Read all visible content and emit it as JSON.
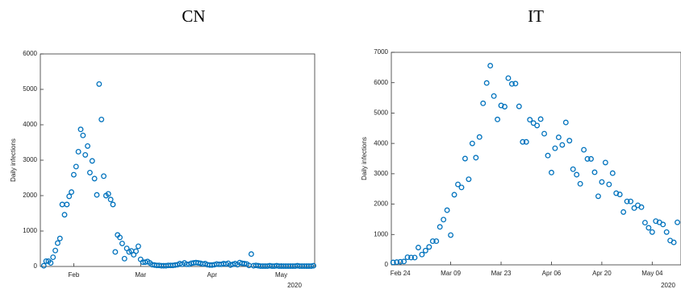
{
  "chart_data": [
    {
      "type": "scatter",
      "title": "CN",
      "y_label": "Daily infections",
      "annotation": "2020",
      "color": "#0072bd",
      "x": [
        19,
        20,
        21,
        22,
        23,
        24,
        25,
        26,
        27,
        28,
        29,
        30,
        31,
        32,
        33,
        34,
        35,
        36,
        37,
        38,
        39,
        40,
        41,
        42,
        43,
        44,
        45,
        46,
        47,
        48,
        49,
        50,
        51,
        52,
        53,
        54,
        55,
        56,
        57,
        58,
        59,
        60,
        61,
        62,
        63,
        64,
        65,
        66,
        67,
        68,
        69,
        70,
        71,
        72,
        73,
        74,
        75,
        76,
        77,
        78,
        79,
        80,
        81,
        82,
        83,
        84,
        85,
        86,
        87,
        88,
        89,
        90,
        91,
        92,
        93,
        94,
        95,
        96,
        97,
        98,
        99,
        100,
        101,
        102,
        103,
        104,
        105,
        106,
        107,
        108,
        109,
        110,
        111,
        112,
        113,
        114,
        115,
        116,
        117,
        118,
        119,
        120,
        121,
        122,
        123,
        124,
        125,
        126,
        127,
        128,
        129,
        130,
        131,
        132,
        133,
        134,
        135,
        136
      ],
      "values": [
        20,
        150,
        150,
        100,
        260,
        450,
        660,
        790,
        1750,
        1460,
        1750,
        1980,
        2100,
        2590,
        2820,
        3240,
        3870,
        3700,
        3150,
        3400,
        2650,
        2980,
        2480,
        2020,
        5150,
        4150,
        2550,
        2000,
        2050,
        1890,
        1750,
        410,
        890,
        820,
        650,
        220,
        510,
        410,
        440,
        330,
        430,
        570,
        200,
        120,
        120,
        140,
        100,
        50,
        40,
        30,
        30,
        20,
        20,
        20,
        30,
        30,
        30,
        40,
        50,
        80,
        60,
        100,
        60,
        60,
        90,
        100,
        110,
        100,
        90,
        70,
        80,
        50,
        40,
        40,
        50,
        70,
        60,
        60,
        80,
        70,
        90,
        40,
        60,
        80,
        50,
        110,
        90,
        80,
        70,
        30,
        350,
        20,
        30,
        20,
        10,
        10,
        10,
        10,
        20,
        10,
        10,
        20,
        10,
        10,
        10,
        10,
        10,
        10,
        10,
        10,
        20,
        10,
        10,
        10,
        10,
        10,
        10,
        20
      ],
      "xlim": [
        17.5,
        136.5
      ],
      "xticks": [
        {
          "value": 32,
          "label": "Feb"
        },
        {
          "value": 61,
          "label": "Mar"
        },
        {
          "value": 92,
          "label": "Apr"
        },
        {
          "value": 122,
          "label": "May"
        }
      ],
      "ylim": [
        0,
        6000
      ],
      "yticks": [
        0,
        1000,
        2000,
        3000,
        4000,
        5000,
        6000
      ]
    },
    {
      "type": "scatter",
      "title": "IT",
      "y_label": "Daily infections",
      "annotation": "2020",
      "color": "#0072bd",
      "x": [
        53,
        54,
        55,
        56,
        57,
        58,
        59,
        60,
        61,
        62,
        63,
        64,
        65,
        66,
        67,
        68,
        69,
        70,
        71,
        72,
        73,
        74,
        75,
        76,
        77,
        78,
        79,
        80,
        81,
        82,
        83,
        84,
        85,
        86,
        87,
        88,
        89,
        90,
        91,
        92,
        93,
        94,
        95,
        96,
        97,
        98,
        99,
        100,
        101,
        102,
        103,
        104,
        105,
        106,
        107,
        108,
        109,
        110,
        111,
        112,
        113,
        114,
        115,
        116,
        117,
        118,
        119,
        120,
        121,
        122,
        123,
        124,
        125,
        126,
        127,
        128,
        129,
        130,
        131,
        132
      ],
      "values": [
        80,
        90,
        100,
        110,
        250,
        240,
        240,
        570,
        340,
        470,
        590,
        780,
        780,
        1250,
        1490,
        1800,
        980,
        2310,
        2650,
        2550,
        3500,
        2820,
        4000,
        3530,
        4210,
        5320,
        5990,
        6560,
        5560,
        4790,
        5250,
        5210,
        6150,
        5960,
        5970,
        5220,
        4050,
        4050,
        4780,
        4670,
        4590,
        4800,
        4320,
        3600,
        3040,
        3840,
        4200,
        3950,
        4690,
        4090,
        3150,
        2970,
        2670,
        3790,
        3490,
        3490,
        3050,
        2260,
        2730,
        3370,
        2650,
        3020,
        2360,
        2320,
        1740,
        2090,
        2090,
        1870,
        1960,
        1900,
        1390,
        1220,
        1080,
        1440,
        1400,
        1330,
        1080,
        800,
        740,
        1400
      ],
      "xlim": [
        52.5,
        133
      ],
      "xticks": [
        {
          "value": 55,
          "label": "Feb 24"
        },
        {
          "value": 69,
          "label": "Mar 09"
        },
        {
          "value": 83,
          "label": "Mar 23"
        },
        {
          "value": 97,
          "label": "Apr 06"
        },
        {
          "value": 111,
          "label": "Apr 20"
        },
        {
          "value": 125,
          "label": "May 04"
        }
      ],
      "ylim": [
        0,
        7000
      ],
      "yticks": [
        0,
        1000,
        2000,
        3000,
        4000,
        5000,
        6000,
        7000
      ]
    }
  ]
}
